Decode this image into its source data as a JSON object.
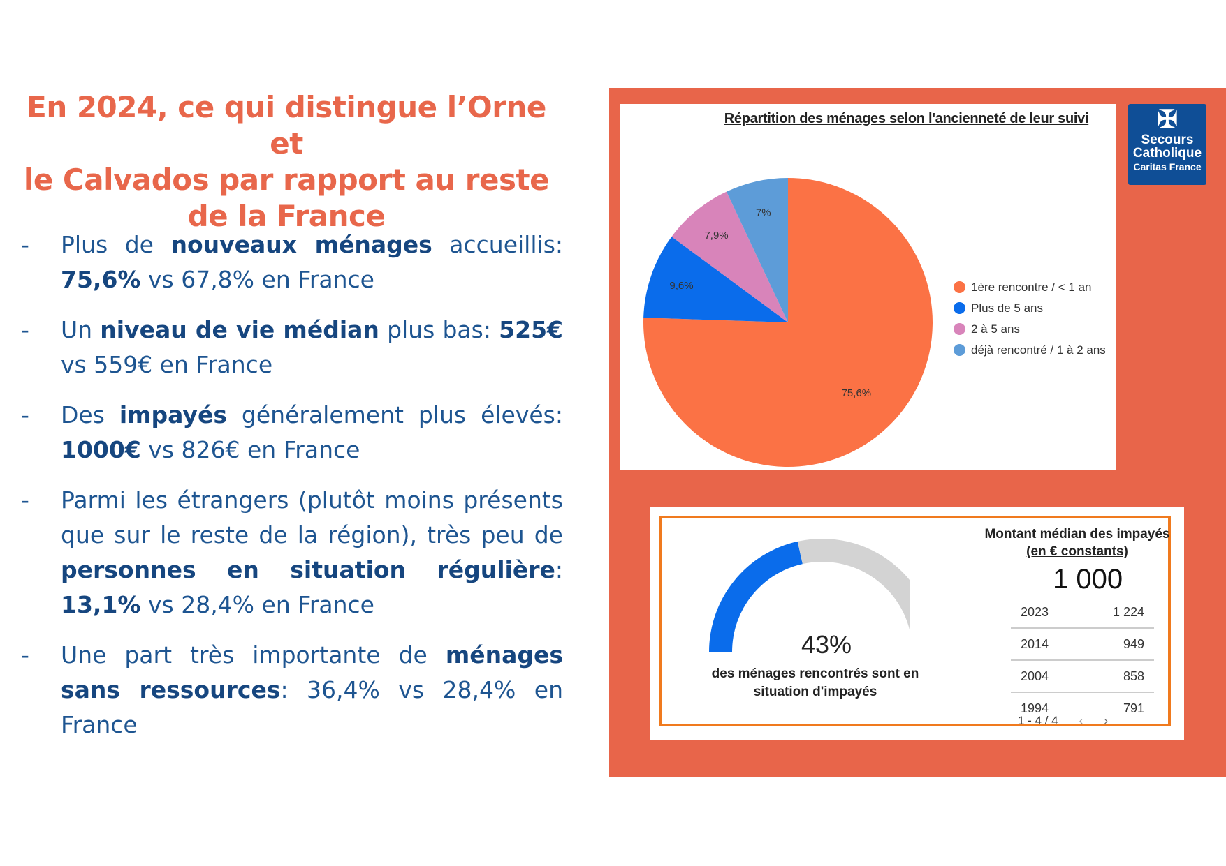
{
  "title": [
    "En 2024, ce qui distingue l’Orne et",
    "le Calvados par rapport au reste",
    "de la France"
  ],
  "bullets": [
    [
      {
        "t": "Plus de "
      },
      {
        "t": "nouveaux ménages",
        "b": true
      },
      {
        "t": " accueillis: "
      },
      {
        "t": "75,6%",
        "b": true
      },
      {
        "t": " vs 67,8% en France"
      }
    ],
    [
      {
        "t": "Un "
      },
      {
        "t": "niveau de vie médian",
        "b": true
      },
      {
        "t": " plus bas: "
      },
      {
        "t": "525€",
        "b": true
      },
      {
        "t": " vs 559€ en France"
      }
    ],
    [
      {
        "t": "Des "
      },
      {
        "t": "impayés",
        "b": true
      },
      {
        "t": " généralement plus élevés: "
      },
      {
        "t": "1000€",
        "b": true
      },
      {
        "t": " vs 826€ en France"
      }
    ],
    [
      {
        "t": "Parmi les étrangers (plutôt moins présents que sur le reste de la région), très peu de "
      },
      {
        "t": "personnes en situation régulière",
        "b": true
      },
      {
        "t": ": "
      },
      {
        "t": "13,1%",
        "b": true
      },
      {
        "t": " vs 28,4% en France"
      }
    ],
    [
      {
        "t": "Une part très importante de "
      },
      {
        "t": "ménages sans ressources",
        "b": true
      },
      {
        "t": ": 36,4% vs 28,4% en France"
      }
    ]
  ],
  "bullet_marker": "-",
  "logo": {
    "line1": "Secours",
    "line2": "Catholique",
    "line3": "Caritas France",
    "icon": "cross-icon"
  },
  "colors": {
    "title": "#E8674B",
    "text": "#1E5591",
    "panel": "#E8654A",
    "frame": "#F07A1E",
    "logo": "#0F4E96"
  },
  "chart_data": [
    {
      "type": "pie",
      "title": "Répartition des ménages selon l'ancienneté de leur suivi",
      "legend_position": "right",
      "slices": [
        {
          "label": "1ère rencontre / < 1 an",
          "value": 75.6,
          "display": "75,6%",
          "color": "#FB7245"
        },
        {
          "label": "Plus de 5 ans",
          "value": 9.6,
          "display": "9,6%",
          "color": "#0A6CEB"
        },
        {
          "label": "2 à 5 ans",
          "value": 7.9,
          "display": "7,9%",
          "color": "#D884BA"
        },
        {
          "label": "déjà rencontré / 1 à 2 ans",
          "value": 7,
          "display": "7%",
          "color": "#5D9CD8"
        }
      ]
    },
    {
      "type": "gauge",
      "value": 43,
      "display": "43%",
      "caption": "des ménages rencontrés sont en situation d'impayés",
      "fill_color": "#0A6CEB",
      "track_color": "#D3D3D3"
    },
    {
      "type": "table",
      "title": "Montant médian des impayés (en € constants)",
      "headline": "1 000",
      "rows": [
        {
          "year": "2023",
          "value": "1 224"
        },
        {
          "year": "2014",
          "value": "949"
        },
        {
          "year": "2004",
          "value": "858"
        },
        {
          "year": "1994",
          "value": "791"
        }
      ],
      "pagination": "1 - 4 / 4",
      "prev_icon": "chevron-left-icon",
      "next_icon": "chevron-right-icon"
    }
  ]
}
